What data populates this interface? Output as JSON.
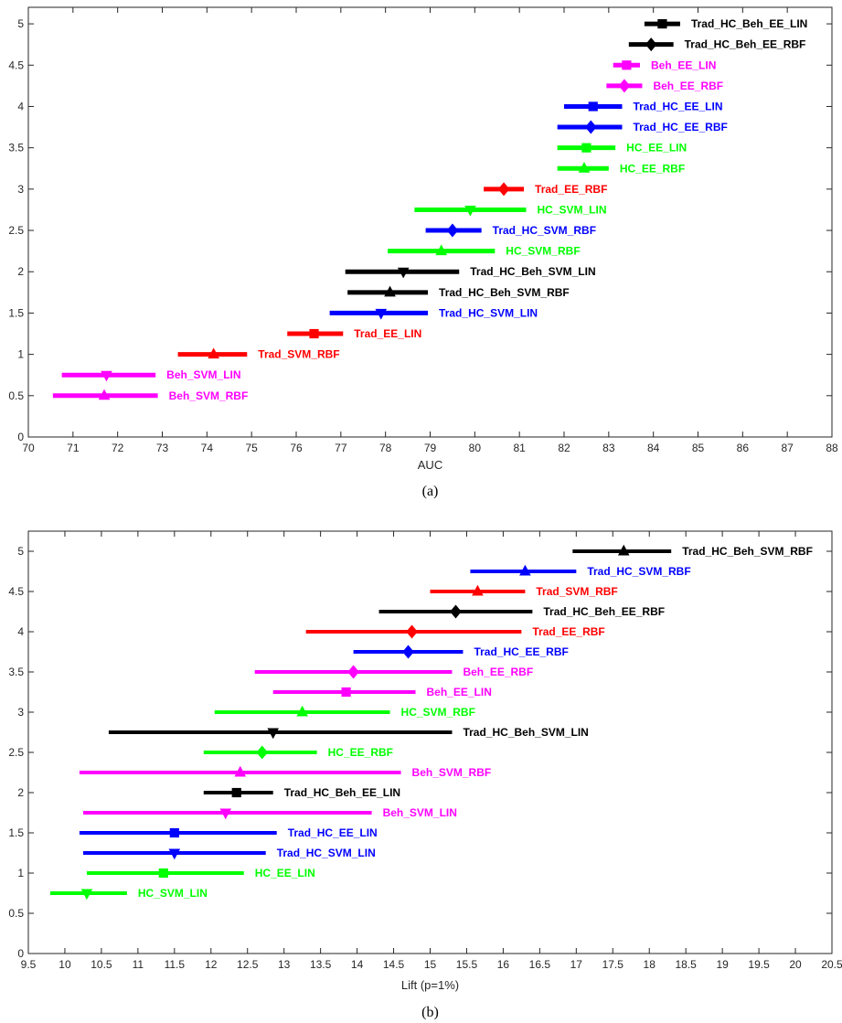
{
  "chart_data": [
    {
      "type": "scatter",
      "subtitle": "(a)",
      "xlabel": "AUC",
      "xlim": [
        70,
        88
      ],
      "ylim": [
        0,
        5.2
      ],
      "xticks": [
        "70",
        "71",
        "72",
        "73",
        "74",
        "75",
        "76",
        "77",
        "78",
        "79",
        "80",
        "81",
        "82",
        "83",
        "84",
        "85",
        "86",
        "87",
        "88"
      ],
      "yticks": [
        "0",
        "0.5",
        "1",
        "1.5",
        "2",
        "2.5",
        "3",
        "3.5",
        "4",
        "4.5",
        "5"
      ],
      "grid": false,
      "series": [
        {
          "name": "Trad_HC_Beh_EE_LIN",
          "y": 5.0,
          "x": 84.2,
          "low": 83.8,
          "high": 84.6,
          "marker": "square",
          "color": "#000000"
        },
        {
          "name": "Trad_HC_Beh_EE_RBF",
          "y": 4.75,
          "x": 83.95,
          "low": 83.45,
          "high": 84.45,
          "marker": "diamond",
          "color": "#000000"
        },
        {
          "name": "Beh_EE_LIN",
          "y": 4.5,
          "x": 83.4,
          "low": 83.1,
          "high": 83.7,
          "marker": "square",
          "color": "#ff00ff"
        },
        {
          "name": "Beh_EE_RBF",
          "y": 4.25,
          "x": 83.35,
          "low": 82.95,
          "high": 83.75,
          "marker": "diamond",
          "color": "#ff00ff"
        },
        {
          "name": "Trad_HC_EE_LIN",
          "y": 4.0,
          "x": 82.65,
          "low": 82.0,
          "high": 83.3,
          "marker": "square",
          "color": "#0000ff"
        },
        {
          "name": "Trad_HC_EE_RBF",
          "y": 3.75,
          "x": 82.6,
          "low": 81.85,
          "high": 83.3,
          "marker": "diamond",
          "color": "#0000ff"
        },
        {
          "name": "HC_EE_LIN",
          "y": 3.5,
          "x": 82.5,
          "low": 81.85,
          "high": 83.15,
          "marker": "square",
          "color": "#00ff00"
        },
        {
          "name": "HC_EE_RBF",
          "y": 3.25,
          "x": 82.45,
          "low": 81.85,
          "high": 83.0,
          "marker": "triangle-up",
          "color": "#00ff00"
        },
        {
          "name": "Trad_EE_RBF",
          "y": 3.0,
          "x": 80.65,
          "low": 80.2,
          "high": 81.1,
          "marker": "diamond",
          "color": "#ff0000"
        },
        {
          "name": "HC_SVM_LIN",
          "y": 2.75,
          "x": 79.9,
          "low": 78.65,
          "high": 81.15,
          "marker": "triangle-down",
          "color": "#00ff00"
        },
        {
          "name": "Trad_HC_SVM_RBF",
          "y": 2.5,
          "x": 79.5,
          "low": 78.9,
          "high": 80.15,
          "marker": "diamond",
          "color": "#0000ff"
        },
        {
          "name": "HC_SVM_RBF",
          "y": 2.25,
          "x": 79.25,
          "low": 78.05,
          "high": 80.45,
          "marker": "triangle-up",
          "color": "#00ff00"
        },
        {
          "name": "Trad_HC_Beh_SVM_LIN",
          "y": 2.0,
          "x": 78.4,
          "low": 77.1,
          "high": 79.65,
          "marker": "triangle-down",
          "color": "#000000"
        },
        {
          "name": "Trad_HC_Beh_SVM_RBF",
          "y": 1.75,
          "x": 78.1,
          "low": 77.15,
          "high": 78.95,
          "marker": "triangle-up",
          "color": "#000000"
        },
        {
          "name": "Trad_HC_SVM_LIN",
          "y": 1.5,
          "x": 77.9,
          "low": 76.75,
          "high": 78.95,
          "marker": "triangle-down",
          "color": "#0000ff"
        },
        {
          "name": "Trad_EE_LIN",
          "y": 1.25,
          "x": 76.4,
          "low": 75.8,
          "high": 77.05,
          "marker": "square",
          "color": "#ff0000"
        },
        {
          "name": "Trad_SVM_RBF",
          "y": 1.0,
          "x": 74.15,
          "low": 73.35,
          "high": 74.9,
          "marker": "triangle-up",
          "color": "#ff0000"
        },
        {
          "name": "Beh_SVM_LIN",
          "y": 0.75,
          "x": 71.75,
          "low": 70.75,
          "high": 72.85,
          "marker": "triangle-down",
          "color": "#ff00ff"
        },
        {
          "name": "Beh_SVM_RBF",
          "y": 0.5,
          "x": 71.7,
          "low": 70.55,
          "high": 72.9,
          "marker": "triangle-up",
          "color": "#ff00ff"
        }
      ]
    },
    {
      "type": "scatter",
      "subtitle": "(b)",
      "xlabel": "Lift (p=1%)",
      "xlim": [
        9.5,
        20.5
      ],
      "ylim": [
        0,
        5.25
      ],
      "xticks": [
        "9.5",
        "10",
        "10.5",
        "11",
        "11.5",
        "12",
        "12.5",
        "13",
        "13.5",
        "14",
        "14.5",
        "15",
        "15.5",
        "16",
        "16.5",
        "17",
        "17.5",
        "18",
        "18.5",
        "19",
        "19.5",
        "20",
        "20.5"
      ],
      "yticks": [
        "0",
        "0.5",
        "1",
        "1.5",
        "2",
        "2.5",
        "3",
        "3.5",
        "4",
        "4.5",
        "5"
      ],
      "grid": false,
      "series": [
        {
          "name": "Trad_HC_Beh_SVM_RBF",
          "y": 5.0,
          "x": 17.65,
          "low": 16.95,
          "high": 18.3,
          "marker": "triangle-up",
          "color": "#000000"
        },
        {
          "name": "Trad_HC_SVM_RBF",
          "y": 4.75,
          "x": 16.3,
          "low": 15.55,
          "high": 17.0,
          "marker": "triangle-up",
          "color": "#0000ff"
        },
        {
          "name": "Trad_SVM_RBF",
          "y": 4.5,
          "x": 15.65,
          "low": 15.0,
          "high": 16.3,
          "marker": "triangle-up",
          "color": "#ff0000"
        },
        {
          "name": "Trad_HC_Beh_EE_RBF",
          "y": 4.25,
          "x": 15.35,
          "low": 14.3,
          "high": 16.4,
          "marker": "diamond",
          "color": "#000000"
        },
        {
          "name": "Trad_EE_RBF",
          "y": 4.0,
          "x": 14.75,
          "low": 13.3,
          "high": 16.25,
          "marker": "diamond",
          "color": "#ff0000"
        },
        {
          "name": "Trad_HC_EE_RBF",
          "y": 3.75,
          "x": 14.7,
          "low": 13.95,
          "high": 15.45,
          "marker": "diamond",
          "color": "#0000ff"
        },
        {
          "name": "Beh_EE_RBF",
          "y": 3.5,
          "x": 13.95,
          "low": 12.6,
          "high": 15.3,
          "marker": "diamond",
          "color": "#ff00ff"
        },
        {
          "name": "Beh_EE_LIN",
          "y": 3.25,
          "x": 13.85,
          "low": 12.85,
          "high": 14.8,
          "marker": "square",
          "color": "#ff00ff"
        },
        {
          "name": "HC_SVM_RBF",
          "y": 3.0,
          "x": 13.25,
          "low": 12.05,
          "high": 14.45,
          "marker": "triangle-up",
          "color": "#00ff00"
        },
        {
          "name": "Trad_HC_Beh_SVM_LIN",
          "y": 2.75,
          "x": 12.85,
          "low": 10.6,
          "high": 15.3,
          "marker": "triangle-down",
          "color": "#000000"
        },
        {
          "name": "HC_EE_RBF",
          "y": 2.5,
          "x": 12.7,
          "low": 11.9,
          "high": 13.45,
          "marker": "diamond",
          "color": "#00ff00"
        },
        {
          "name": "Beh_SVM_RBF",
          "y": 2.25,
          "x": 12.4,
          "low": 10.2,
          "high": 14.6,
          "marker": "triangle-up",
          "color": "#ff00ff"
        },
        {
          "name": "Trad_HC_Beh_EE_LIN",
          "y": 2.0,
          "x": 12.35,
          "low": 11.9,
          "high": 12.85,
          "marker": "square",
          "color": "#000000"
        },
        {
          "name": "Beh_SVM_LIN",
          "y": 1.75,
          "x": 12.2,
          "low": 10.25,
          "high": 14.2,
          "marker": "triangle-down",
          "color": "#ff00ff"
        },
        {
          "name": "Trad_HC_EE_LIN",
          "y": 1.5,
          "x": 11.5,
          "low": 10.2,
          "high": 12.9,
          "marker": "square",
          "color": "#0000ff"
        },
        {
          "name": "Trad_HC_SVM_LIN",
          "y": 1.25,
          "x": 11.5,
          "low": 10.25,
          "high": 12.75,
          "marker": "triangle-down",
          "color": "#0000ff"
        },
        {
          "name": "HC_EE_LIN",
          "y": 1.0,
          "x": 11.35,
          "low": 10.3,
          "high": 12.45,
          "marker": "square",
          "color": "#00ff00"
        },
        {
          "name": "HC_SVM_LIN",
          "y": 0.75,
          "x": 10.3,
          "low": 9.8,
          "high": 10.85,
          "marker": "triangle-down",
          "color": "#00ff00"
        }
      ]
    }
  ]
}
